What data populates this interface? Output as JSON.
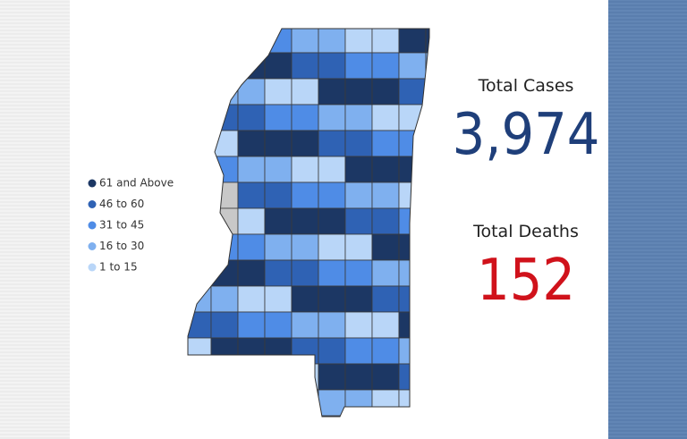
{
  "legend": {
    "items": [
      {
        "label": "61 and Above",
        "color": "#1c3764"
      },
      {
        "label": "46 to 60",
        "color": "#2f62b4"
      },
      {
        "label": "31 to 45",
        "color": "#4f8ce6"
      },
      {
        "label": "16 to 30",
        "color": "#7fb0ef"
      },
      {
        "label": "1 to 15",
        "color": "#b9d6f8"
      }
    ]
  },
  "stats": [
    {
      "label": "Total Cases",
      "value": "3,974",
      "color": "#1f3f7a"
    },
    {
      "label": "Total Deaths",
      "value": "152",
      "color": "#d0121b"
    }
  ]
}
